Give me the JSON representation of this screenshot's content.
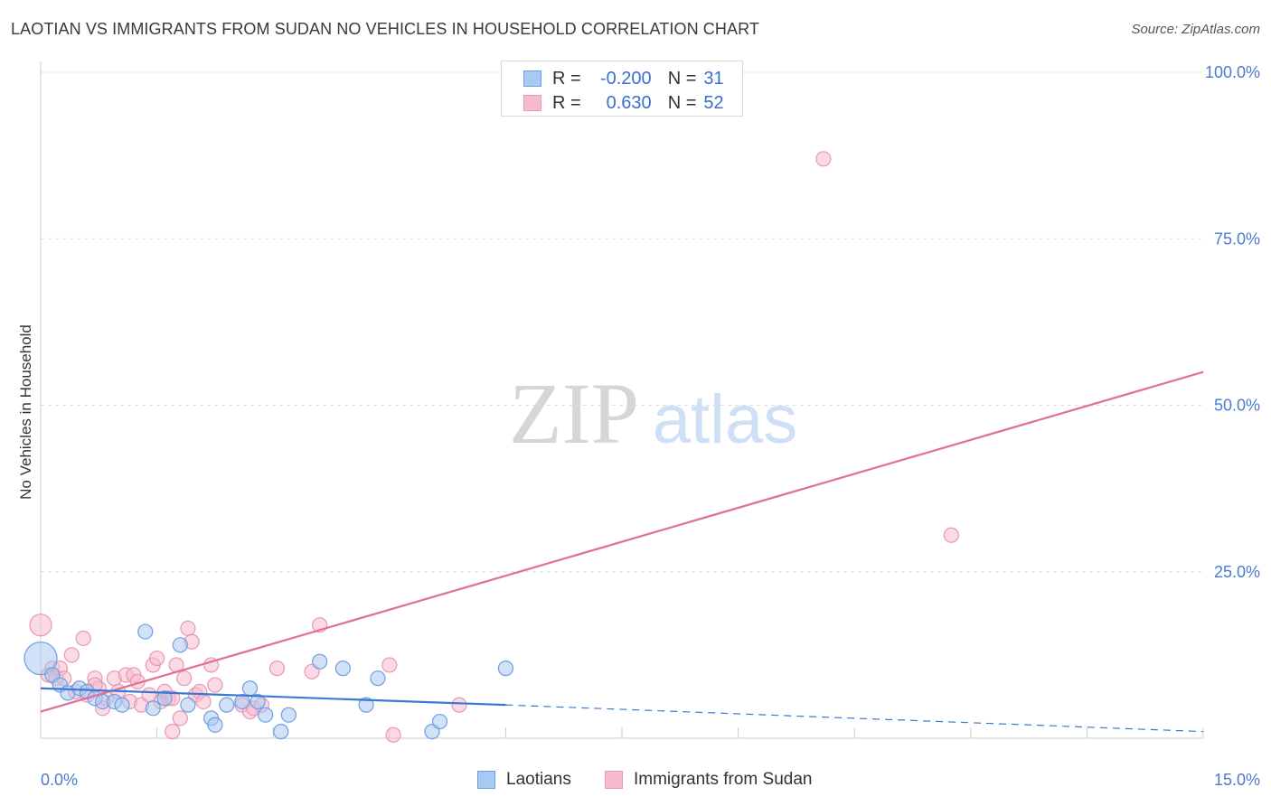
{
  "header": {
    "title": "LAOTIAN VS IMMIGRANTS FROM SUDAN NO VEHICLES IN HOUSEHOLD CORRELATION CHART",
    "source": "Source: ZipAtlas.com"
  },
  "watermark": {
    "zip": "ZIP",
    "atlas": "atlas"
  },
  "legend": {
    "rows": [
      {
        "r_label": "R =",
        "r_value": "-0.200",
        "n_label": "N =",
        "n_value": "31"
      },
      {
        "r_label": "R =",
        "r_value": "0.630",
        "n_label": "N =",
        "n_value": "52"
      }
    ]
  },
  "bottom_legend": {
    "series1": "Laotians",
    "series2": "Immigrants from Sudan"
  },
  "colors": {
    "blue_fill": "#a9c8f2",
    "blue_stroke": "#6e9fe0",
    "blue_line": "#3a78d6",
    "pink_fill": "#f6bccd",
    "pink_stroke": "#ea97b2",
    "pink_line": "#e06e98",
    "tick_label": "#4a7bd0",
    "grid": "#dddddd"
  },
  "chart_data": {
    "type": "scatter",
    "title": "LAOTIAN VS IMMIGRANTS FROM SUDAN NO VEHICLES IN HOUSEHOLD CORRELATION CHART",
    "xlabel": "",
    "ylabel": "No Vehicles in Household",
    "xlim": [
      0,
      15
    ],
    "ylim": [
      0,
      100
    ],
    "x_tick_labels": [
      "0.0%",
      "15.0%"
    ],
    "y_ticks": [
      25,
      50,
      75,
      100
    ],
    "y_tick_labels": [
      "25.0%",
      "50.0%",
      "75.0%",
      "100.0%"
    ],
    "grid": true,
    "legend_placement": "top-center",
    "series": [
      {
        "name": "Laotians",
        "r": -0.2,
        "n": 31,
        "points": [
          [
            0.0,
            12.0,
            3
          ],
          [
            0.15,
            9.5,
            1
          ],
          [
            0.25,
            8.0,
            1
          ],
          [
            0.35,
            6.8,
            1
          ],
          [
            0.5,
            7.5,
            1
          ],
          [
            0.6,
            7.0,
            1
          ],
          [
            0.7,
            6.0,
            1
          ],
          [
            0.8,
            5.5,
            1
          ],
          [
            0.95,
            5.5,
            1
          ],
          [
            1.05,
            5.0,
            1
          ],
          [
            1.35,
            16.0,
            1
          ],
          [
            1.45,
            4.5,
            1
          ],
          [
            1.6,
            6.0,
            1
          ],
          [
            1.8,
            14.0,
            1
          ],
          [
            1.9,
            5.0,
            1
          ],
          [
            2.2,
            3.0,
            1
          ],
          [
            2.25,
            2.0,
            1
          ],
          [
            2.4,
            5.0,
            1
          ],
          [
            2.6,
            5.5,
            1
          ],
          [
            2.7,
            7.5,
            1
          ],
          [
            2.8,
            5.5,
            1
          ],
          [
            2.9,
            3.5,
            1
          ],
          [
            3.1,
            1.0,
            1
          ],
          [
            3.2,
            3.5,
            1
          ],
          [
            3.6,
            11.5,
            1
          ],
          [
            3.9,
            10.5,
            1
          ],
          [
            4.2,
            5.0,
            1
          ],
          [
            4.35,
            9.0,
            1
          ],
          [
            5.05,
            1.0,
            1
          ],
          [
            5.15,
            2.5,
            1
          ],
          [
            6.0,
            10.5,
            1
          ]
        ]
      },
      {
        "name": "Immigrants from Sudan",
        "r": 0.63,
        "n": 52,
        "points": [
          [
            0.0,
            17.0,
            2
          ],
          [
            0.1,
            9.5,
            1
          ],
          [
            0.15,
            10.5,
            1
          ],
          [
            0.2,
            9.0,
            1
          ],
          [
            0.25,
            10.5,
            1
          ],
          [
            0.3,
            9.0,
            1
          ],
          [
            0.4,
            12.5,
            1
          ],
          [
            0.45,
            7.0,
            1
          ],
          [
            0.55,
            15.0,
            1
          ],
          [
            0.6,
            6.5,
            1
          ],
          [
            0.7,
            9.0,
            1
          ],
          [
            0.75,
            7.5,
            1
          ],
          [
            0.8,
            4.5,
            1
          ],
          [
            0.85,
            6.0,
            1
          ],
          [
            0.95,
            9.0,
            1
          ],
          [
            1.0,
            7.0,
            1
          ],
          [
            1.1,
            9.5,
            1
          ],
          [
            1.15,
            5.5,
            1
          ],
          [
            1.2,
            9.5,
            1
          ],
          [
            1.25,
            8.5,
            1
          ],
          [
            1.3,
            5.0,
            1
          ],
          [
            1.4,
            6.5,
            1
          ],
          [
            1.45,
            11.0,
            1
          ],
          [
            1.5,
            12.0,
            1
          ],
          [
            1.55,
            5.5,
            1
          ],
          [
            1.6,
            7.0,
            1
          ],
          [
            1.65,
            6.0,
            1
          ],
          [
            1.7,
            6.0,
            1
          ],
          [
            1.75,
            11.0,
            1
          ],
          [
            1.8,
            3.0,
            1
          ],
          [
            1.85,
            9.0,
            1
          ],
          [
            1.9,
            16.5,
            1
          ],
          [
            1.95,
            14.5,
            1
          ],
          [
            2.0,
            6.5,
            1
          ],
          [
            2.05,
            7.0,
            1
          ],
          [
            2.1,
            5.5,
            1
          ],
          [
            2.2,
            11.0,
            1
          ],
          [
            2.25,
            8.0,
            1
          ],
          [
            2.6,
            5.0,
            1
          ],
          [
            2.7,
            4.0,
            1
          ],
          [
            2.75,
            4.5,
            1
          ],
          [
            2.85,
            5.0,
            1
          ],
          [
            3.05,
            10.5,
            1
          ],
          [
            3.5,
            10.0,
            1
          ],
          [
            3.6,
            17.0,
            1
          ],
          [
            4.5,
            11.0,
            1
          ],
          [
            4.55,
            0.5,
            1
          ],
          [
            5.4,
            5.0,
            1
          ],
          [
            10.1,
            87.0,
            1
          ],
          [
            11.75,
            30.5,
            1
          ],
          [
            1.7,
            1.0,
            1
          ],
          [
            0.7,
            8.0,
            1
          ]
        ]
      }
    ],
    "trend_lines": [
      {
        "series": "Laotians",
        "from": [
          0,
          7.5
        ],
        "to": [
          6.0,
          5.0
        ],
        "dashed_to": [
          15.0,
          1.0
        ]
      },
      {
        "series": "Immigrants from Sudan",
        "from": [
          0,
          4.0
        ],
        "to": [
          15.0,
          55.0
        ]
      }
    ]
  }
}
